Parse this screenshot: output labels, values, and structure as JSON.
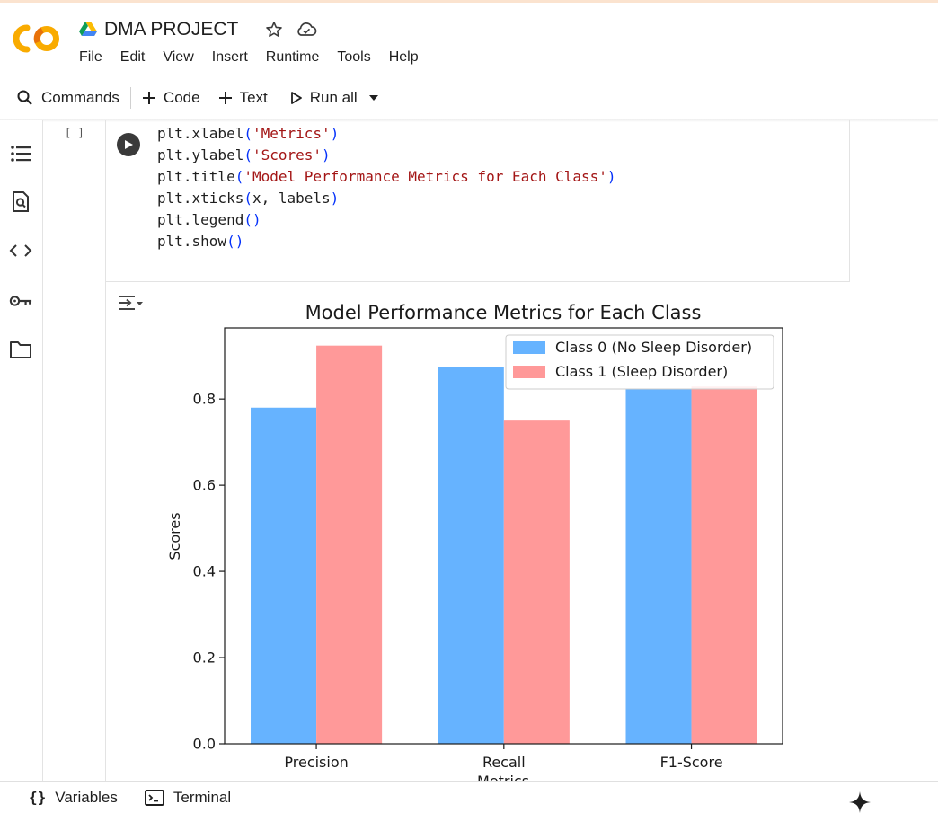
{
  "app": {
    "doc_title": "DMA PROJECT",
    "menu": [
      "File",
      "Edit",
      "View",
      "Insert",
      "Runtime",
      "Tools",
      "Help"
    ]
  },
  "toolbar": {
    "commands": "Commands",
    "code": "Code",
    "text": "Text",
    "run_all": "Run all"
  },
  "cell": {
    "exec_count": "[ ]",
    "code_lines": [
      [
        [
          "plt.xlabel",
          ""
        ],
        [
          "(",
          "par"
        ],
        [
          "'Metrics'",
          "str"
        ],
        [
          ")",
          "par"
        ]
      ],
      [
        [
          "plt.ylabel",
          ""
        ],
        [
          "(",
          "par"
        ],
        [
          "'Scores'",
          "str"
        ],
        [
          ")",
          "par"
        ]
      ],
      [
        [
          "plt.title",
          ""
        ],
        [
          "(",
          "par"
        ],
        [
          "'Model Performance Metrics for Each Class'",
          "str"
        ],
        [
          ")",
          "par"
        ]
      ],
      [
        [
          "plt.xticks",
          ""
        ],
        [
          "(",
          "par"
        ],
        [
          "x, labels",
          ""
        ],
        [
          ")",
          "par"
        ]
      ],
      [
        [
          "plt.legend",
          ""
        ],
        [
          "()",
          "par"
        ]
      ],
      [
        [
          "plt.show",
          ""
        ],
        [
          "()",
          "par"
        ]
      ]
    ]
  },
  "chart_data": {
    "type": "bar",
    "title": "Model Performance Metrics for Each Class",
    "xlabel": "Metrics",
    "ylabel": "Scores",
    "categories": [
      "Precision",
      "Recall",
      "F1-Score"
    ],
    "series": [
      {
        "name": "Class 0 (No Sleep Disorder)",
        "values": [
          0.78,
          0.875,
          0.823
        ],
        "color": "#66b3ff"
      },
      {
        "name": "Class 1 (Sleep Disorder)",
        "values": [
          0.924,
          0.75,
          0.829
        ],
        "color": "#ff9999"
      }
    ],
    "ylim": [
      0,
      0.965
    ],
    "yticks": [
      0.0,
      0.2,
      0.4,
      0.6,
      0.8
    ],
    "ytick_labels": [
      "0.0",
      "0.2",
      "0.4",
      "0.6",
      "0.8"
    ],
    "legend_position": "top-right",
    "grid": false
  },
  "bottom": {
    "variables": "Variables",
    "terminal": "Terminal"
  },
  "colors": {
    "run_button": "#3a3a3a",
    "logo_orange": "#f9ab00",
    "logo_dark_orange": "#e8710a"
  }
}
